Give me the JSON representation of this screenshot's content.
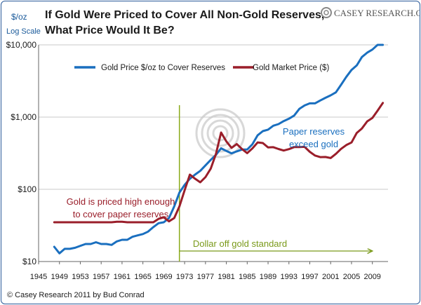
{
  "chart_data": {
    "type": "line",
    "title": "If Gold Were Priced to Cover All Non-Gold Reserves, What Price Would It Be?",
    "title_lines": [
      "If Gold Were Priced to Cover All Non-Gold Reserves,",
      "What Price Would It Be?"
    ],
    "ylabel": "$/oz",
    "ylabel_sub": "Log Scale",
    "yscale": "log",
    "ylim": [
      10,
      10000
    ],
    "xlim": [
      1945,
      2012
    ],
    "y_ticks": [
      10,
      100,
      1000,
      10000
    ],
    "y_tick_labels": [
      "$10",
      "$100",
      "$1,000",
      "$10,000"
    ],
    "x_ticks": [
      1945,
      1949,
      1953,
      1957,
      1961,
      1965,
      1969,
      1973,
      1977,
      1981,
      1985,
      1989,
      1993,
      1997,
      2001,
      2005,
      2009
    ],
    "x_tick_labels": [
      "1945",
      "1949",
      "1953",
      "1957",
      "1961",
      "1965",
      "1969",
      "1973",
      "1977",
      "1981",
      "1985",
      "1989",
      "1993",
      "1997",
      "2001",
      "2005",
      "2009"
    ],
    "grid": "horizontal",
    "legend_position": "top",
    "series": [
      {
        "name": "Gold Price $/oz to Cover Reserves",
        "color": "#1a6fbf",
        "x": [
          1948,
          1949,
          1950,
          1951,
          1952,
          1953,
          1954,
          1955,
          1956,
          1957,
          1958,
          1959,
          1960,
          1961,
          1962,
          1963,
          1964,
          1965,
          1966,
          1967,
          1968,
          1969,
          1970,
          1971,
          1972,
          1973,
          1974,
          1975,
          1976,
          1977,
          1978,
          1979,
          1980,
          1981,
          1982,
          1983,
          1984,
          1985,
          1986,
          1987,
          1988,
          1989,
          1990,
          1991,
          1992,
          1993,
          1994,
          1995,
          1996,
          1997,
          1998,
          1999,
          2000,
          2001,
          2002,
          2003,
          2004,
          2005,
          2006,
          2007,
          2008,
          2009,
          2010,
          2011
        ],
        "values": [
          16,
          13,
          15,
          15,
          15.5,
          16.5,
          17.5,
          17.5,
          18.5,
          17.5,
          17.5,
          17,
          19,
          20,
          20,
          22,
          23,
          24,
          26,
          30,
          34,
          35,
          40,
          58,
          90,
          115,
          140,
          160,
          180,
          215,
          255,
          300,
          370,
          340,
          315,
          335,
          355,
          355,
          420,
          560,
          640,
          670,
          760,
          800,
          880,
          950,
          1050,
          1300,
          1450,
          1550,
          1550,
          1700,
          1850,
          2000,
          2200,
          2800,
          3600,
          4500,
          5200,
          6800,
          7800,
          8600,
          10000,
          12000
        ],
        "line_width": 3
      },
      {
        "name": "Gold Market Price ($)",
        "color": "#9a1e2a",
        "x": [
          1948,
          1949,
          1950,
          1951,
          1952,
          1953,
          1954,
          1955,
          1956,
          1957,
          1958,
          1959,
          1960,
          1961,
          1962,
          1963,
          1964,
          1965,
          1966,
          1967,
          1968,
          1969,
          1970,
          1971,
          1972,
          1973,
          1974,
          1975,
          1976,
          1977,
          1978,
          1979,
          1980,
          1981,
          1982,
          1983,
          1984,
          1985,
          1986,
          1987,
          1988,
          1989,
          1990,
          1991,
          1992,
          1993,
          1994,
          1995,
          1996,
          1997,
          1998,
          1999,
          2000,
          2001,
          2002,
          2003,
          2004,
          2005,
          2006,
          2007,
          2008,
          2009,
          2010,
          2011
        ],
        "values": [
          35,
          35,
          35,
          35,
          35,
          35,
          35,
          35,
          35,
          35,
          35,
          35,
          35.5,
          35.5,
          35,
          35,
          35,
          35,
          35,
          35,
          39,
          41,
          36,
          40,
          58,
          97,
          160,
          140,
          125,
          148,
          193,
          307,
          612,
          460,
          375,
          424,
          361,
          317,
          368,
          446,
          437,
          381,
          383,
          362,
          344,
          360,
          384,
          384,
          388,
          331,
          294,
          279,
          280,
          271,
          310,
          363,
          410,
          445,
          604,
          696,
          872,
          972,
          1225,
          1570
        ],
        "line_width": 3
      }
    ],
    "annotations": [
      {
        "label": "Paper reserves",
        "color": "#1a6fbf"
      },
      {
        "label": "exceed gold",
        "color": "#1a6fbf"
      },
      {
        "label": "Gold is priced high enough",
        "color": "#9a1e2a"
      },
      {
        "label": "to cover paper reserves",
        "color": "#9a1e2a"
      },
      {
        "label": "Dollar off gold standard",
        "color": "#7a9a1a"
      }
    ],
    "vline": {
      "x": 1972,
      "color": "#8aaa1a"
    },
    "arrow": {
      "from": 1972,
      "to": 2009,
      "y": 12,
      "color": "#7a9a1a"
    }
  },
  "brand": {
    "name": "CASEY RESEARCH.COM"
  },
  "footer": {
    "credit": "© Casey Research 2011 by Bud Conrad"
  }
}
